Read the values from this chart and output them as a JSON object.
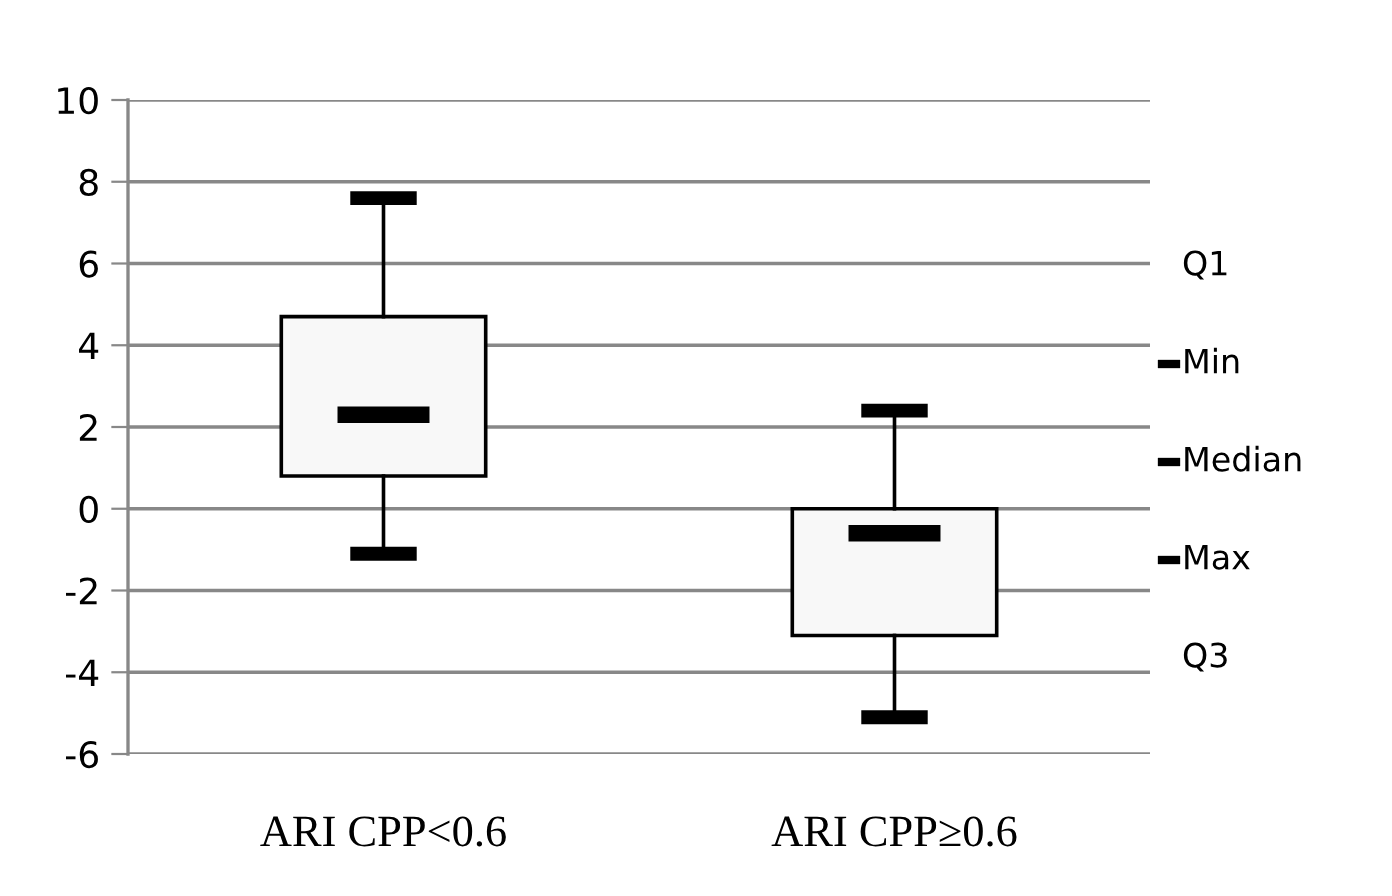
{
  "chart_data": {
    "type": "box",
    "categories": [
      "ARI CPP<0.6",
      "ARI CPP≥0.6"
    ],
    "boxes": [
      {
        "low": -1.1,
        "q1": 0.8,
        "median": 2.3,
        "q3": 4.7,
        "high": 7.6
      },
      {
        "low": -5.1,
        "q1": -3.1,
        "median": -0.6,
        "q3": 0.0,
        "high": 2.4
      }
    ],
    "color": "#f8f8f8",
    "annotations": [
      "Q1",
      "Min",
      "Median",
      "Max",
      "Q3"
    ],
    "ylim": [
      -6,
      10
    ],
    "yticks": [
      -6,
      -4,
      -2,
      0,
      2,
      4,
      6,
      8,
      10
    ],
    "grid": "y"
  }
}
